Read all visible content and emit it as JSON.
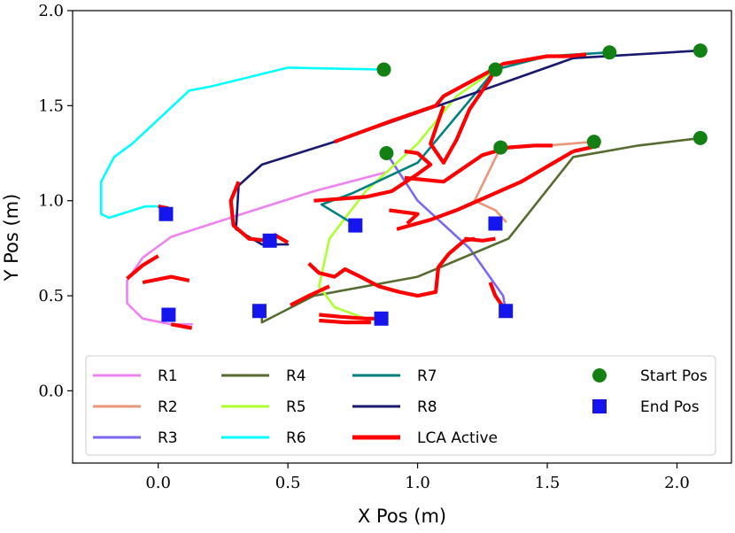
{
  "chart_data": {
    "type": "line",
    "xlabel": "X Pos (m)",
    "ylabel": "Y Pos (m)",
    "xlim": [
      -0.33,
      2.21
    ],
    "ylim": [
      -0.38,
      2.0
    ],
    "xticks": [
      0.0,
      0.5,
      1.0,
      1.5,
      2.0
    ],
    "xtick_labels": [
      "0.0",
      "0.5",
      "1.0",
      "1.5",
      "2.0"
    ],
    "yticks": [
      0.0,
      0.5,
      1.0,
      1.5,
      2.0
    ],
    "ytick_labels": [
      "0.0",
      "0.5",
      "1.0",
      "1.5",
      "2.0"
    ],
    "grid": false,
    "legend_position": "lower-center",
    "series": [
      {
        "name": "R1",
        "color": "#ee82ee",
        "points": [
          [
            0.88,
            1.15
          ],
          [
            0.6,
            1.05
          ],
          [
            0.3,
            0.92
          ],
          [
            0.05,
            0.81
          ],
          [
            -0.06,
            0.7
          ],
          [
            -0.12,
            0.58
          ],
          [
            -0.12,
            0.46
          ],
          [
            -0.06,
            0.38
          ],
          [
            0.05,
            0.35
          ],
          [
            0.13,
            0.35
          ]
        ]
      },
      {
        "name": "R2",
        "color": "#e9967a",
        "points": [
          [
            1.68,
            1.31
          ],
          [
            1.5,
            1.29
          ],
          [
            1.32,
            1.28
          ],
          [
            1.22,
            1.0
          ],
          [
            1.3,
            0.95
          ],
          [
            1.34,
            0.89
          ]
        ]
      },
      {
        "name": "R3",
        "color": "#7b68ee",
        "points": [
          [
            0.88,
            1.25
          ],
          [
            1.0,
            1.0
          ],
          [
            1.2,
            0.75
          ],
          [
            1.33,
            0.5
          ],
          [
            1.34,
            0.42
          ]
        ]
      },
      {
        "name": "R4",
        "color": "#556b2f",
        "points": [
          [
            2.09,
            1.33
          ],
          [
            1.85,
            1.29
          ],
          [
            1.6,
            1.23
          ],
          [
            1.35,
            0.8
          ],
          [
            1.0,
            0.6
          ],
          [
            0.6,
            0.5
          ],
          [
            0.4,
            0.36
          ],
          [
            0.4,
            0.4
          ]
        ]
      },
      {
        "name": "R5",
        "color": "#adff2f",
        "points": [
          [
            1.3,
            1.69
          ],
          [
            1.15,
            1.55
          ],
          [
            1.0,
            1.3
          ],
          [
            0.8,
            1.05
          ],
          [
            0.66,
            0.8
          ],
          [
            0.62,
            0.55
          ],
          [
            0.68,
            0.44
          ],
          [
            0.8,
            0.38
          ]
        ]
      },
      {
        "name": "R6",
        "color": "#00ffff",
        "points": [
          [
            0.87,
            1.69
          ],
          [
            0.5,
            1.7
          ],
          [
            0.2,
            1.6
          ],
          [
            0.12,
            1.58
          ],
          [
            -0.1,
            1.3
          ],
          [
            -0.17,
            1.23
          ],
          [
            -0.22,
            1.1
          ],
          [
            -0.22,
            0.93
          ],
          [
            -0.19,
            0.91
          ],
          [
            -0.05,
            0.97
          ],
          [
            0.02,
            0.97
          ]
        ]
      },
      {
        "name": "R7",
        "color": "#008080",
        "points": [
          [
            1.74,
            1.78
          ],
          [
            1.5,
            1.76
          ],
          [
            1.3,
            1.69
          ],
          [
            1.0,
            1.2
          ],
          [
            0.75,
            1.04
          ],
          [
            0.63,
            0.98
          ],
          [
            0.75,
            0.88
          ]
        ]
      },
      {
        "name": "R8",
        "color": "#191970",
        "points": [
          [
            2.09,
            1.79
          ],
          [
            1.6,
            1.75
          ],
          [
            1.08,
            1.5
          ],
          [
            0.68,
            1.31
          ],
          [
            0.4,
            1.19
          ],
          [
            0.31,
            1.08
          ],
          [
            0.3,
            0.85
          ],
          [
            0.4,
            0.77
          ],
          [
            0.5,
            0.77
          ]
        ]
      }
    ],
    "lca_active": {
      "name": "LCA Active",
      "color": "#ff0000",
      "segments": [
        [
          [
            0.0,
            0.97
          ],
          [
            0.04,
            0.96
          ]
        ],
        [
          [
            -0.12,
            0.59
          ],
          [
            -0.06,
            0.66
          ],
          [
            0.0,
            0.71
          ]
        ],
        [
          [
            -0.06,
            0.57
          ],
          [
            0.05,
            0.6
          ],
          [
            0.12,
            0.58
          ]
        ],
        [
          [
            0.05,
            0.35
          ],
          [
            0.13,
            0.33
          ]
        ],
        [
          [
            0.31,
            1.1
          ],
          [
            0.28,
            1.0
          ],
          [
            0.29,
            0.87
          ],
          [
            0.35,
            0.8
          ],
          [
            0.42,
            0.79
          ],
          [
            0.45,
            0.82
          ],
          [
            0.5,
            0.78
          ]
        ],
        [
          [
            0.68,
            1.31
          ],
          [
            0.9,
            1.42
          ],
          [
            1.07,
            1.5
          ],
          [
            1.1,
            1.55
          ],
          [
            1.25,
            1.66
          ],
          [
            1.33,
            1.72
          ],
          [
            1.5,
            1.76
          ],
          [
            1.58,
            1.76
          ]
        ],
        [
          [
            1.58,
            1.76
          ],
          [
            1.65,
            1.77
          ]
        ],
        [
          [
            1.1,
            1.5
          ],
          [
            1.05,
            1.3
          ],
          [
            1.1,
            1.2
          ],
          [
            1.15,
            1.32
          ],
          [
            1.2,
            1.48
          ],
          [
            1.28,
            1.64
          ],
          [
            1.3,
            1.7
          ]
        ],
        [
          [
            0.6,
            1.0
          ],
          [
            0.8,
            1.02
          ],
          [
            0.9,
            1.05
          ],
          [
            1.0,
            1.14
          ],
          [
            1.05,
            1.19
          ],
          [
            1.0,
            1.25
          ],
          [
            0.95,
            1.26
          ]
        ],
        [
          [
            0.95,
            1.12
          ],
          [
            1.1,
            1.1
          ],
          [
            1.25,
            1.24
          ],
          [
            1.35,
            1.28
          ],
          [
            1.45,
            1.29
          ]
        ],
        [
          [
            1.45,
            1.29
          ],
          [
            1.52,
            1.29
          ]
        ],
        [
          [
            0.89,
            0.95
          ],
          [
            1.0,
            0.93
          ],
          [
            0.96,
            0.88
          ]
        ],
        [
          [
            0.92,
            0.85
          ],
          [
            1.05,
            0.9
          ],
          [
            1.15,
            0.95
          ],
          [
            1.4,
            1.1
          ],
          [
            1.55,
            1.22
          ],
          [
            1.6,
            1.26
          ]
        ],
        [
          [
            1.6,
            1.26
          ],
          [
            1.7,
            1.29
          ]
        ],
        [
          [
            1.18,
            0.8
          ],
          [
            1.25,
            0.79
          ],
          [
            1.3,
            0.8
          ]
        ],
        [
          [
            1.28,
            0.57
          ],
          [
            1.3,
            0.5
          ],
          [
            1.34,
            0.42
          ]
        ],
        [
          [
            0.58,
            0.67
          ],
          [
            0.62,
            0.62
          ],
          [
            0.68,
            0.6
          ],
          [
            0.72,
            0.64
          ],
          [
            0.78,
            0.6
          ],
          [
            0.85,
            0.55
          ],
          [
            0.93,
            0.52
          ],
          [
            1.0,
            0.5
          ],
          [
            1.07,
            0.52
          ],
          [
            1.08,
            0.65
          ],
          [
            1.12,
            0.72
          ],
          [
            1.18,
            0.79
          ],
          [
            1.22,
            0.8
          ]
        ],
        [
          [
            0.62,
            0.4
          ],
          [
            0.7,
            0.39
          ],
          [
            0.8,
            0.38
          ],
          [
            0.85,
            0.38
          ]
        ],
        [
          [
            0.62,
            0.37
          ],
          [
            0.72,
            0.36
          ],
          [
            0.82,
            0.36
          ]
        ],
        [
          [
            0.51,
            0.45
          ],
          [
            0.58,
            0.5
          ],
          [
            0.66,
            0.55
          ]
        ]
      ]
    },
    "start_positions": [
      [
        0.87,
        1.69
      ],
      [
        1.3,
        1.69
      ],
      [
        1.74,
        1.78
      ],
      [
        2.09,
        1.79
      ],
      [
        0.88,
        1.25
      ],
      [
        1.32,
        1.28
      ],
      [
        1.68,
        1.31
      ],
      [
        2.09,
        1.33
      ]
    ],
    "end_positions": [
      [
        0.03,
        0.93
      ],
      [
        0.43,
        0.79
      ],
      [
        0.76,
        0.87
      ],
      [
        1.3,
        0.88
      ],
      [
        0.04,
        0.4
      ],
      [
        0.39,
        0.42
      ],
      [
        0.86,
        0.38
      ],
      [
        1.34,
        0.42
      ]
    ],
    "legend": {
      "entries": [
        "R1",
        "R2",
        "R3",
        "R4",
        "R5",
        "R6",
        "R7",
        "R8",
        "LCA Active",
        "Start Pos",
        "End Pos"
      ]
    },
    "colors": {
      "start_marker": "#128012",
      "end_marker": "#1515ee"
    }
  }
}
